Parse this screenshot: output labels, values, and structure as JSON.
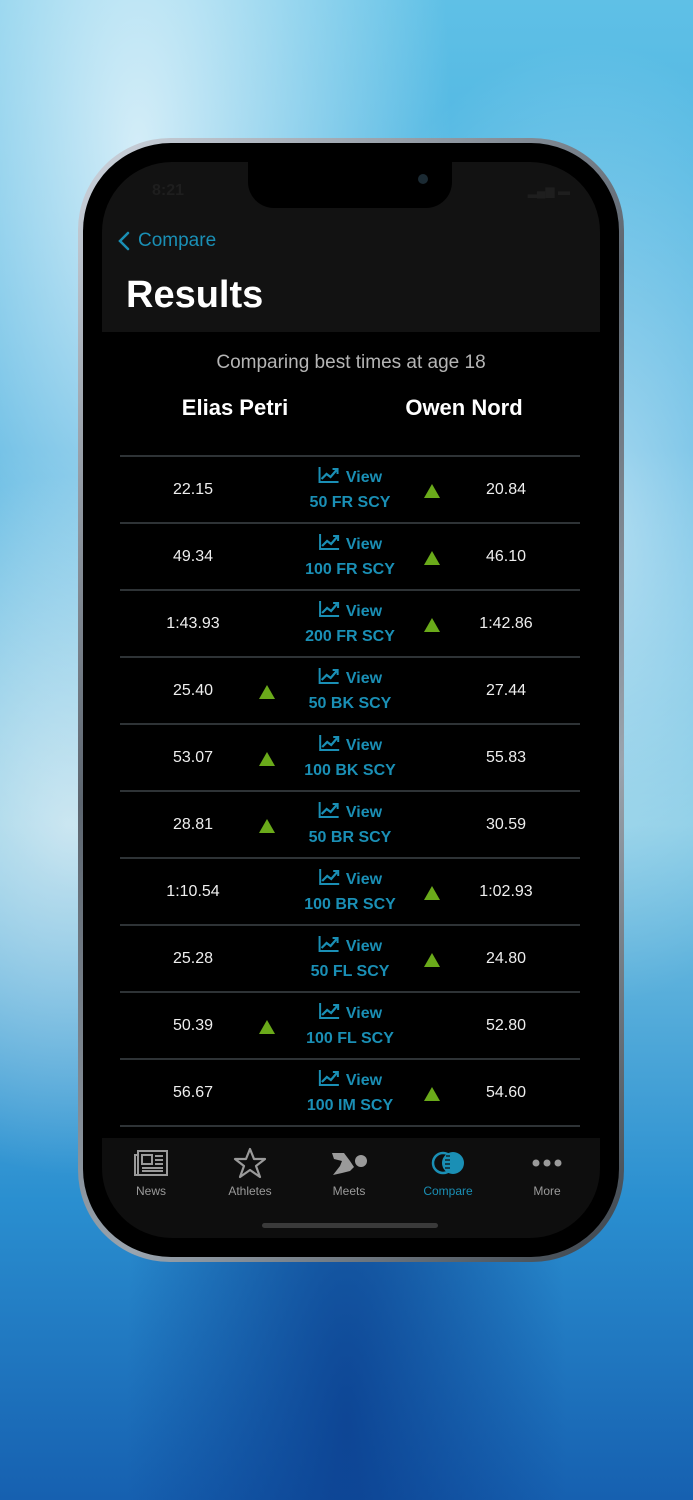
{
  "status": {
    "time": "8:21"
  },
  "nav": {
    "back_label": "Compare",
    "title": "Results"
  },
  "comparison": {
    "subtitle": "Comparing best times at age 18",
    "athlete_left": "Elias Petri",
    "athlete_right": "Owen Nord",
    "view_label": "View"
  },
  "colors": {
    "accent": "#1a8fb5",
    "better": "#6aaa1a"
  },
  "rows": [
    {
      "event": "50 FR SCY",
      "left": "22.15",
      "right": "20.84",
      "better": "right"
    },
    {
      "event": "100 FR SCY",
      "left": "49.34",
      "right": "46.10",
      "better": "right"
    },
    {
      "event": "200 FR SCY",
      "left": "1:43.93",
      "right": "1:42.86",
      "better": "right"
    },
    {
      "event": "50 BK SCY",
      "left": "25.40",
      "right": "27.44",
      "better": "left"
    },
    {
      "event": "100 BK SCY",
      "left": "53.07",
      "right": "55.83",
      "better": "left"
    },
    {
      "event": "50 BR SCY",
      "left": "28.81",
      "right": "30.59",
      "better": "left"
    },
    {
      "event": "100 BR SCY",
      "left": "1:10.54",
      "right": "1:02.93",
      "better": "right"
    },
    {
      "event": "50 FL SCY",
      "left": "25.28",
      "right": "24.80",
      "better": "right"
    },
    {
      "event": "100 FL SCY",
      "left": "50.39",
      "right": "52.80",
      "better": "left"
    },
    {
      "event": "100 IM SCY",
      "left": "56.67",
      "right": "54.60",
      "better": "right"
    }
  ],
  "tabs": [
    {
      "label": "News",
      "icon": "newspaper-icon"
    },
    {
      "label": "Athletes",
      "icon": "star-icon"
    },
    {
      "label": "Meets",
      "icon": "swimmer-icon"
    },
    {
      "label": "Compare",
      "icon": "compare-circles-icon",
      "active": true
    },
    {
      "label": "More",
      "icon": "more-dots-icon"
    }
  ]
}
